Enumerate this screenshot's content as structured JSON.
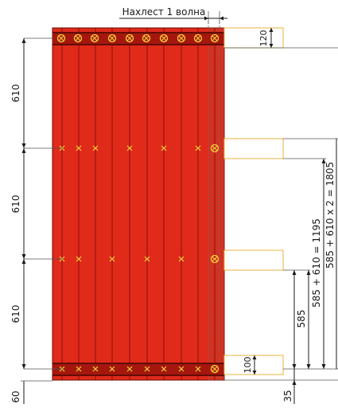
{
  "diagram": {
    "overlap_label": "Нахлест 1 волна",
    "left_dimensions": [
      "610",
      "610",
      "610"
    ],
    "bottom_left_partial": "60",
    "top_strip_height": "120",
    "bottom_strip_height": "100",
    "right_dim_585": "585",
    "right_dim_1195": "585 + 610 = 1195",
    "right_dim_1805": "585 + 610 x 2 = 1805",
    "bottom_right_partial": "35",
    "colors": {
      "sheet": "#e02a1a",
      "rib": "#8b1008",
      "band": "#a5170c",
      "fastener": "#f3d23a",
      "batten": "#e8b33c"
    }
  }
}
